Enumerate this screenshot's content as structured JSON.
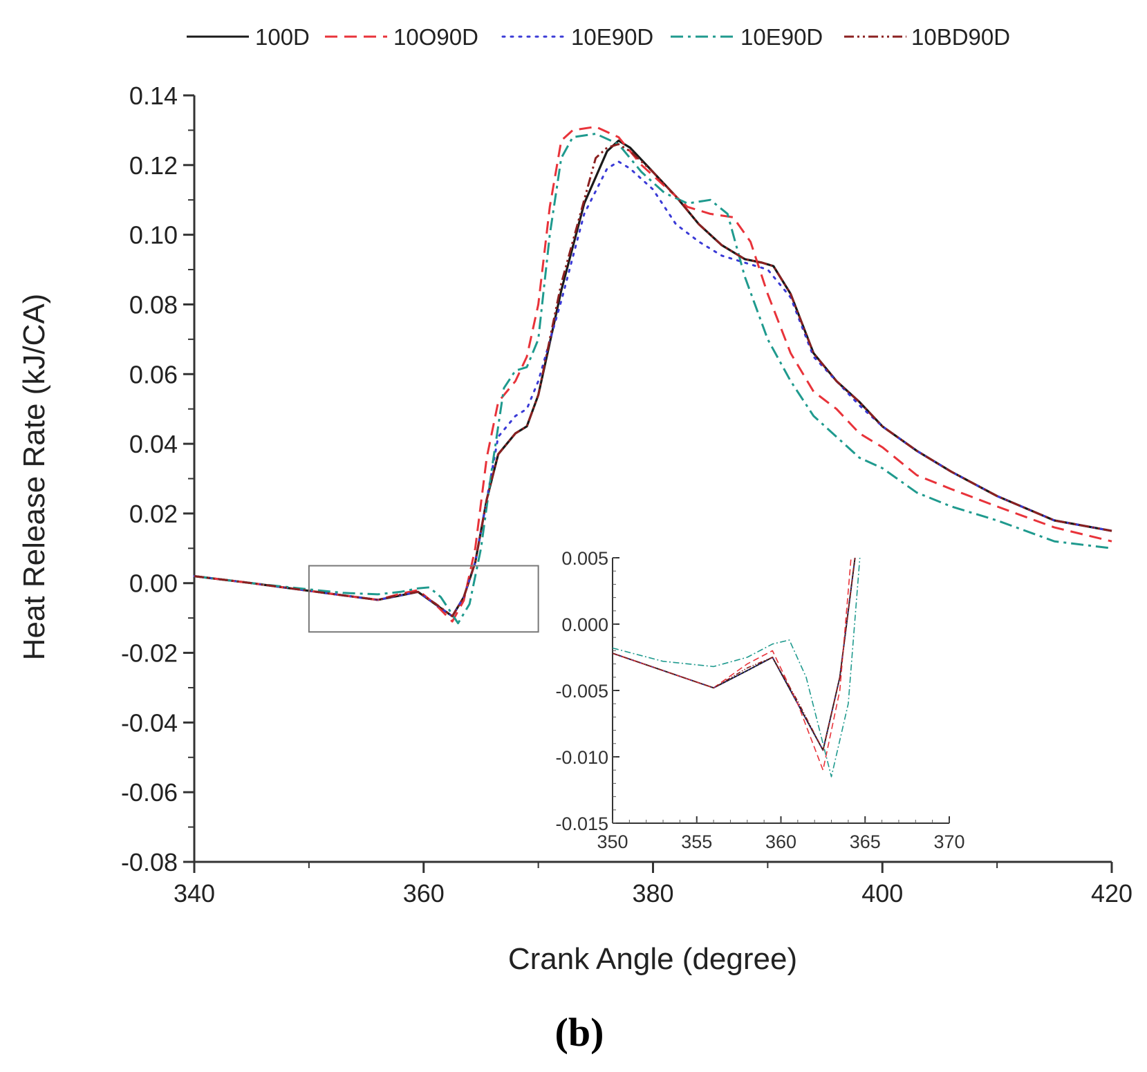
{
  "chart_data": {
    "type": "line",
    "title": "",
    "caption": "(b)",
    "xlabel": "Crank Angle (degree)",
    "ylabel": "Heat Release Rate (kJ/CA)",
    "xlim": [
      340,
      420
    ],
    "ylim": [
      -0.08,
      0.14
    ],
    "x_ticks": [
      340,
      360,
      380,
      400,
      420
    ],
    "y_ticks": [
      "0.14",
      "0.12",
      "0.10",
      "0.08",
      "0.06",
      "0.04",
      "0.02",
      "0.00",
      "-0.02",
      "-0.04",
      "-0.06",
      "-0.08"
    ],
    "legend_position": "top",
    "series": [
      {
        "name": "100D",
        "color": "#1a1a1a",
        "style": "solid",
        "points": [
          [
            340,
            0.002
          ],
          [
            345,
            0.0
          ],
          [
            350,
            -0.0022
          ],
          [
            353,
            -0.0035
          ],
          [
            356,
            -0.0048
          ],
          [
            358,
            -0.0035
          ],
          [
            359.5,
            -0.0025
          ],
          [
            361,
            -0.006
          ],
          [
            362.5,
            -0.0095
          ],
          [
            363.5,
            -0.004
          ],
          [
            364.5,
            0.006
          ],
          [
            365.5,
            0.024
          ],
          [
            366.5,
            0.037
          ],
          [
            368,
            0.043
          ],
          [
            369,
            0.045
          ],
          [
            370,
            0.054
          ],
          [
            372,
            0.084
          ],
          [
            374,
            0.109
          ],
          [
            376,
            0.124
          ],
          [
            377,
            0.127
          ],
          [
            378,
            0.125
          ],
          [
            380,
            0.118
          ],
          [
            382,
            0.111
          ],
          [
            384,
            0.103
          ],
          [
            386,
            0.097
          ],
          [
            388,
            0.093
          ],
          [
            389.5,
            0.092
          ],
          [
            390.5,
            0.091
          ],
          [
            392,
            0.083
          ],
          [
            394,
            0.066
          ],
          [
            396,
            0.058
          ],
          [
            398,
            0.052
          ],
          [
            400,
            0.045
          ],
          [
            403,
            0.038
          ],
          [
            406,
            0.032
          ],
          [
            410,
            0.025
          ],
          [
            415,
            0.018
          ],
          [
            420,
            0.015
          ]
        ]
      },
      {
        "name": "10O90D",
        "color": "#e8333a",
        "style": "dashed",
        "points": [
          [
            340,
            0.002
          ],
          [
            345,
            0.0
          ],
          [
            350,
            -0.0022
          ],
          [
            353,
            -0.0035
          ],
          [
            356,
            -0.0048
          ],
          [
            358,
            -0.003
          ],
          [
            359.5,
            -0.002
          ],
          [
            361,
            -0.006
          ],
          [
            362.5,
            -0.011
          ],
          [
            363.5,
            -0.005
          ],
          [
            364.5,
            0.01
          ],
          [
            365.5,
            0.036
          ],
          [
            366.5,
            0.052
          ],
          [
            368,
            0.058
          ],
          [
            369,
            0.065
          ],
          [
            370,
            0.08
          ],
          [
            371,
            0.108
          ],
          [
            372,
            0.127
          ],
          [
            373,
            0.13
          ],
          [
            375,
            0.131
          ],
          [
            377,
            0.128
          ],
          [
            379,
            0.12
          ],
          [
            381,
            0.114
          ],
          [
            383,
            0.108
          ],
          [
            385,
            0.106
          ],
          [
            387,
            0.105
          ],
          [
            388.5,
            0.098
          ],
          [
            390,
            0.083
          ],
          [
            392,
            0.066
          ],
          [
            394,
            0.055
          ],
          [
            396,
            0.05
          ],
          [
            398,
            0.043
          ],
          [
            400,
            0.039
          ],
          [
            403,
            0.031
          ],
          [
            406,
            0.027
          ],
          [
            410,
            0.022
          ],
          [
            415,
            0.016
          ],
          [
            420,
            0.012
          ]
        ]
      },
      {
        "name": "10E90D",
        "color": "#3a3ad6",
        "style": "dotted",
        "points": [
          [
            340,
            0.002
          ],
          [
            345,
            0.0
          ],
          [
            350,
            -0.0022
          ],
          [
            353,
            -0.0035
          ],
          [
            356,
            -0.0048
          ],
          [
            358,
            -0.0035
          ],
          [
            359.5,
            -0.0025
          ],
          [
            361,
            -0.006
          ],
          [
            362.5,
            -0.0095
          ],
          [
            363.5,
            -0.004
          ],
          [
            364.5,
            0.006
          ],
          [
            365.5,
            0.024
          ],
          [
            366.5,
            0.042
          ],
          [
            368,
            0.048
          ],
          [
            369,
            0.05
          ],
          [
            370,
            0.058
          ],
          [
            372,
            0.081
          ],
          [
            374,
            0.106
          ],
          [
            376,
            0.119
          ],
          [
            377,
            0.121
          ],
          [
            378,
            0.119
          ],
          [
            380,
            0.113
          ],
          [
            382,
            0.103
          ],
          [
            384,
            0.098
          ],
          [
            386,
            0.094
          ],
          [
            388,
            0.092
          ],
          [
            390,
            0.09
          ],
          [
            392,
            0.082
          ],
          [
            394,
            0.065
          ],
          [
            396,
            0.058
          ],
          [
            398,
            0.051
          ],
          [
            400,
            0.045
          ],
          [
            403,
            0.038
          ],
          [
            406,
            0.032
          ],
          [
            410,
            0.025
          ],
          [
            415,
            0.018
          ],
          [
            420,
            0.015
          ]
        ]
      },
      {
        "name": "10E90D",
        "color": "#1f9a8e",
        "style": "dashdot",
        "points": [
          [
            340,
            0.002
          ],
          [
            345,
            0.0
          ],
          [
            350,
            -0.0018
          ],
          [
            353,
            -0.0028
          ],
          [
            356,
            -0.0032
          ],
          [
            358,
            -0.0025
          ],
          [
            359.5,
            -0.0015
          ],
          [
            360.5,
            -0.0012
          ],
          [
            361.5,
            -0.004
          ],
          [
            363,
            -0.0115
          ],
          [
            364,
            -0.006
          ],
          [
            365,
            0.01
          ],
          [
            366,
            0.034
          ],
          [
            367,
            0.056
          ],
          [
            368,
            0.061
          ],
          [
            369,
            0.062
          ],
          [
            370,
            0.07
          ],
          [
            371,
            0.1
          ],
          [
            372,
            0.122
          ],
          [
            373,
            0.128
          ],
          [
            375,
            0.129
          ],
          [
            377,
            0.126
          ],
          [
            379,
            0.118
          ],
          [
            381,
            0.112
          ],
          [
            383,
            0.109
          ],
          [
            385,
            0.11
          ],
          [
            386.5,
            0.106
          ],
          [
            388,
            0.088
          ],
          [
            390,
            0.07
          ],
          [
            392,
            0.058
          ],
          [
            394,
            0.048
          ],
          [
            396,
            0.042
          ],
          [
            398,
            0.036
          ],
          [
            400,
            0.033
          ],
          [
            403,
            0.026
          ],
          [
            406,
            0.022
          ],
          [
            410,
            0.018
          ],
          [
            415,
            0.012
          ],
          [
            420,
            0.01
          ]
        ]
      },
      {
        "name": "10BD90D",
        "color": "#8b2020",
        "style": "dashdotdot",
        "points": [
          [
            340,
            0.002
          ],
          [
            345,
            0.0
          ],
          [
            350,
            -0.0022
          ],
          [
            353,
            -0.0035
          ],
          [
            356,
            -0.0048
          ],
          [
            358,
            -0.0033
          ],
          [
            359.5,
            -0.0025
          ],
          [
            361,
            -0.0058
          ],
          [
            362.5,
            -0.0095
          ],
          [
            363.5,
            -0.004
          ],
          [
            364.5,
            0.006
          ],
          [
            365.5,
            0.024
          ],
          [
            366.5,
            0.037
          ],
          [
            368,
            0.043
          ],
          [
            369,
            0.045
          ],
          [
            370,
            0.054
          ],
          [
            372,
            0.086
          ],
          [
            374,
            0.11
          ],
          [
            375,
            0.122
          ],
          [
            376,
            0.125
          ],
          [
            377,
            0.126
          ],
          [
            378,
            0.124
          ],
          [
            380,
            0.118
          ],
          [
            382,
            0.111
          ],
          [
            384,
            0.103
          ],
          [
            386,
            0.097
          ],
          [
            388,
            0.093
          ],
          [
            389.5,
            0.092
          ],
          [
            390.5,
            0.091
          ],
          [
            392,
            0.083
          ],
          [
            394,
            0.066
          ],
          [
            396,
            0.058
          ],
          [
            398,
            0.052
          ],
          [
            400,
            0.045
          ],
          [
            403,
            0.038
          ],
          [
            406,
            0.032
          ],
          [
            410,
            0.025
          ],
          [
            415,
            0.018
          ],
          [
            420,
            0.015
          ]
        ]
      }
    ],
    "inset": {
      "xlim": [
        350,
        370
      ],
      "ylim": [
        -0.015,
        0.005
      ],
      "x_ticks": [
        350,
        355,
        360,
        365,
        370
      ],
      "y_ticks": [
        "0.005",
        "0.000",
        "-0.005",
        "-0.010",
        "-0.015"
      ],
      "zoom_box": {
        "xlim": [
          350,
          370
        ],
        "ylim": [
          -0.014,
          0.005
        ]
      }
    }
  }
}
